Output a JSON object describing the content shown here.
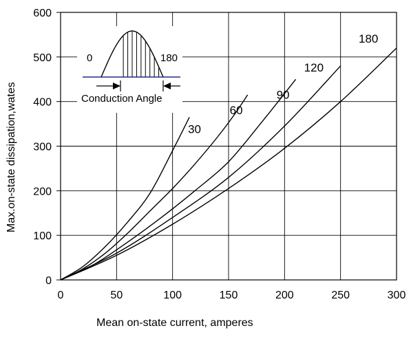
{
  "chart_data": {
    "type": "line",
    "title": "",
    "xlabel": "Mean on-state  current, amperes",
    "ylabel": "Max.on-state dissipation,wates",
    "xlim": [
      0,
      300
    ],
    "ylim": [
      0,
      600
    ],
    "xticks": [
      0,
      50,
      100,
      150,
      200,
      250,
      300
    ],
    "yticks": [
      0,
      100,
      200,
      300,
      400,
      500,
      600
    ],
    "grid": true,
    "legend": "none",
    "series": [
      {
        "name": "30",
        "x": [
          0,
          20,
          40,
          60,
          80,
          100,
          115
        ],
        "y": [
          0,
          30,
          75,
          130,
          195,
          290,
          365
        ]
      },
      {
        "name": "60",
        "x": [
          0,
          20,
          40,
          60,
          80,
          100,
          120,
          140,
          155,
          167
        ],
        "y": [
          0,
          25,
          60,
          105,
          155,
          205,
          260,
          320,
          370,
          415
        ]
      },
      {
        "name": "90",
        "x": [
          0,
          30,
          60,
          90,
          120,
          150,
          180,
          210
        ],
        "y": [
          0,
          35,
          85,
          140,
          200,
          265,
          355,
          450
        ]
      },
      {
        "name": "120",
        "x": [
          0,
          50,
          100,
          150,
          200,
          250
        ],
        "y": [
          0,
          60,
          140,
          230,
          345,
          480
        ]
      },
      {
        "name": "180",
        "x": [
          0,
          50,
          100,
          150,
          200,
          250,
          300
        ],
        "y": [
          0,
          55,
          125,
          205,
          295,
          400,
          520
        ]
      }
    ],
    "inset": {
      "left_label": "0",
      "right_label": "180",
      "caption": "Conduction Angle"
    }
  }
}
